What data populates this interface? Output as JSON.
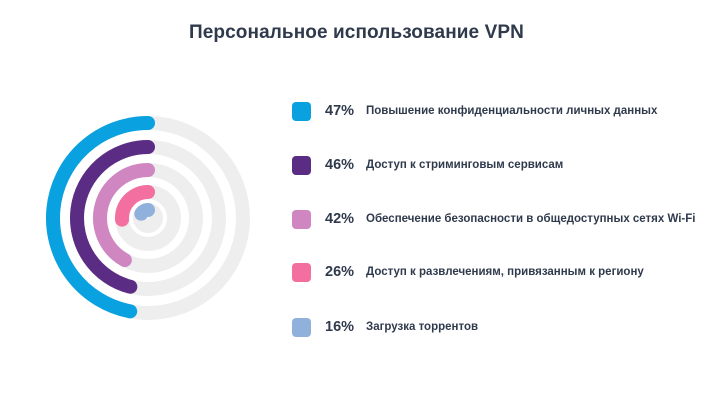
{
  "title": "Персональное использование VPN",
  "colors": {
    "track": "#eeeeee",
    "text": "#2f3a4c"
  },
  "chart_data": {
    "type": "radial-bar",
    "title": "Персональное использование VPN",
    "max": 100,
    "unit": "%",
    "series": [
      {
        "label": "Повышение конфиденциальности личных данных",
        "value": 47,
        "value_label": "47%",
        "color": "#0aa1e0"
      },
      {
        "label": "Доступ к стриминговым сервисам",
        "value": 46,
        "value_label": "46%",
        "color": "#5b2c83"
      },
      {
        "label": "Обеспечение безопасности в общедоступных сетях Wi-Fi",
        "value": 42,
        "value_label": "42%",
        "color": "#cf86c1"
      },
      {
        "label": "Доступ к развлечениям, привязанным к региону",
        "value": 26,
        "value_label": "26%",
        "color": "#f26f9f"
      },
      {
        "label": "Загрузка торрентов",
        "value": 16,
        "value_label": "16%",
        "color": "#91b1dd"
      }
    ]
  }
}
